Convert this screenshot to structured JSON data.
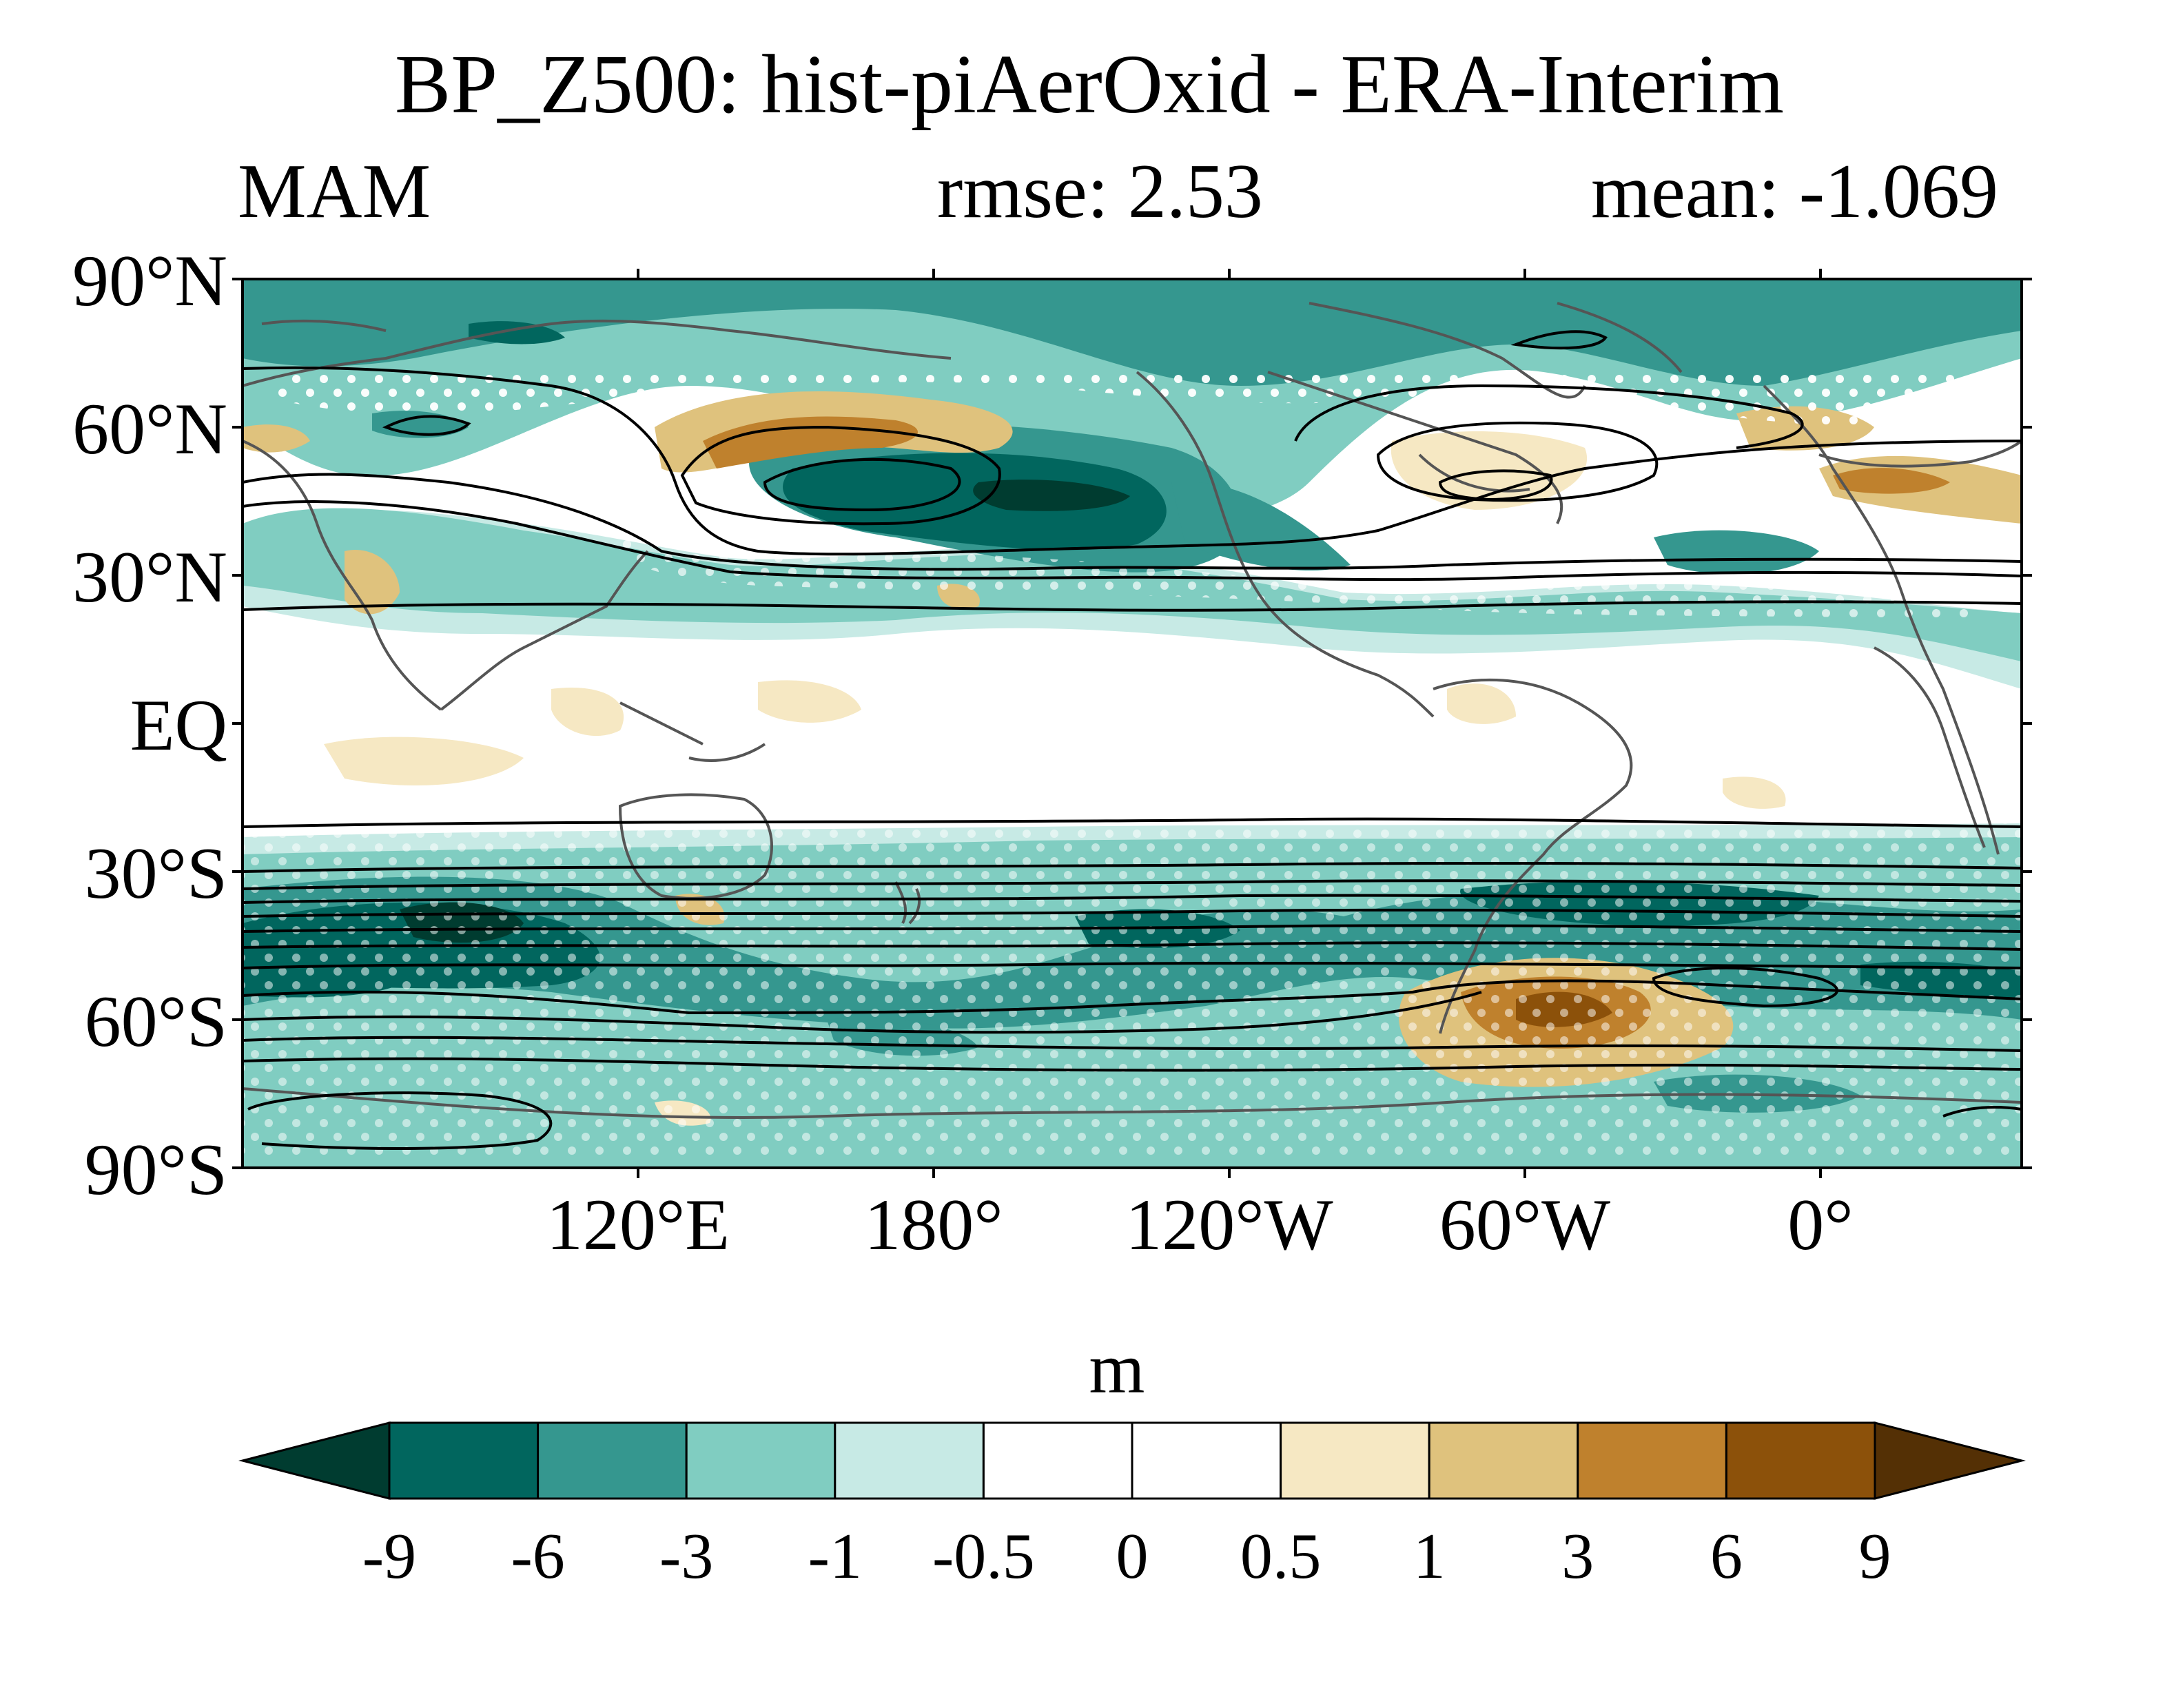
{
  "title": "BP_Z500: hist-piAerOxid - ERA-Interim",
  "subtitle": {
    "left": "MAM",
    "center": "rmse: 2.53",
    "right": "mean: -1.069"
  },
  "latitude_labels": [
    "90°N",
    "60°N",
    "30°N",
    "EQ",
    "30°S",
    "60°S",
    "90°S"
  ],
  "longitude_labels": [
    "120°E",
    "180°",
    "120°W",
    "60°W",
    "0°"
  ],
  "colorbar": {
    "units": "m",
    "levels": [
      "-9",
      "-6",
      "-3",
      "-1",
      "-0.5",
      "0",
      "0.5",
      "1",
      "3",
      "6",
      "9"
    ],
    "colors": [
      "#003c30",
      "#01665e",
      "#35978f",
      "#80cdc1",
      "#c7eae5",
      "#ffffff",
      "#ffffff",
      "#f6e8c3",
      "#dfc27d",
      "#bf812d",
      "#8c510a",
      "#543005"
    ]
  },
  "colors": {
    "teal_dark": "#01665e",
    "teal_mid": "#35978f",
    "teal_light": "#80cdc1",
    "teal_pale": "#c7eae5",
    "tan_pale": "#f6e8c3",
    "tan_light": "#dfc27d",
    "brown_mid": "#bf812d",
    "brown_dark": "#8c510a",
    "coast": "#555555",
    "contour": "#000000",
    "stipple": "#ffffff"
  }
}
